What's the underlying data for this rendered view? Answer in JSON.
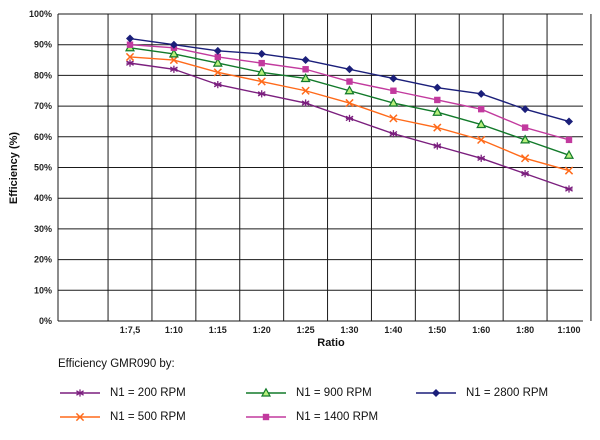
{
  "chart_data": {
    "type": "line",
    "title": "",
    "xlabel": "Ratio",
    "ylabel": "Efficiency (%)",
    "categories": [
      "1:7,5",
      "1:10",
      "1:15",
      "1:20",
      "1:25",
      "1:30",
      "1:40",
      "1:50",
      "1:60",
      "1:80",
      "1:100"
    ],
    "y_ticks": [
      "0%",
      "10%",
      "20%",
      "30%",
      "40%",
      "50%",
      "60%",
      "70%",
      "80%",
      "90%",
      "100%"
    ],
    "ylim": [
      0,
      100
    ],
    "grid": true,
    "legend_title": "Efficiency GMR090 by:",
    "legend_position": "bottom",
    "series": [
      {
        "name": "N1 = 200  RPM",
        "color": "#7b1f7e",
        "marker": "asterisk",
        "values": [
          84,
          82,
          77,
          74,
          71,
          66,
          61,
          57,
          53,
          48,
          43
        ]
      },
      {
        "name": "N1 = 500  RPM",
        "color": "#ff6a1a",
        "marker": "x",
        "values": [
          86,
          85,
          81,
          78,
          75,
          71,
          66,
          63,
          59,
          53,
          49
        ]
      },
      {
        "name": "N1 = 900  RPM",
        "color": "#127a2a",
        "marker": "triangle",
        "values": [
          89,
          87,
          84,
          81,
          79,
          75,
          71,
          68,
          64,
          59,
          54
        ]
      },
      {
        "name": "N1 = 1400  RPM",
        "color": "#c23a9e",
        "marker": "square",
        "values": [
          90,
          89,
          86,
          84,
          82,
          78,
          75,
          72,
          69,
          63,
          59
        ]
      },
      {
        "name": "N1 = 2800  RPM",
        "color": "#1b1f7a",
        "marker": "diamond",
        "values": [
          92,
          90,
          88,
          87,
          85,
          82,
          79,
          76,
          74,
          69,
          65
        ]
      }
    ]
  }
}
